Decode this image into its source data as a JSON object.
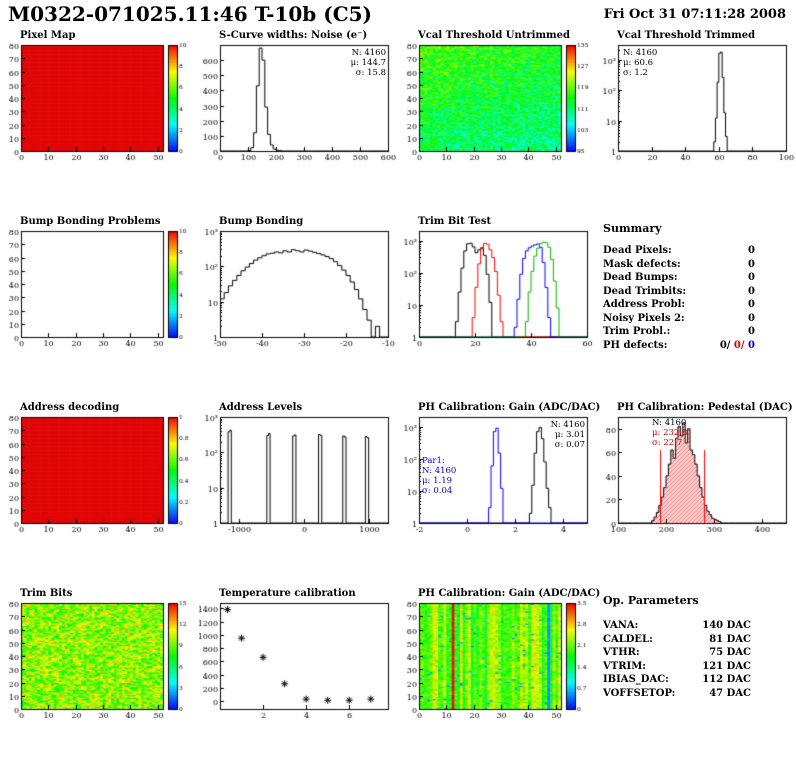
{
  "header": {
    "title": "M0322-071025.11:46 T-10b (C5)",
    "date": "Fri Oct 31 07:11:28 2008"
  },
  "summary": {
    "title": "Summary",
    "rows": [
      {
        "label": "Dead Pixels:",
        "value": "0"
      },
      {
        "label": "Mask defects:",
        "value": "0"
      },
      {
        "label": "Dead Bumps:",
        "value": "0"
      },
      {
        "label": "Dead Trimbits:",
        "value": "0"
      },
      {
        "label": "Address Probl:",
        "value": "0"
      },
      {
        "label": "Noisy Pixels 2:",
        "value": "0"
      },
      {
        "label": "Trim Probl.:",
        "value": "0"
      }
    ],
    "ph_defects": {
      "label": "PH defects:",
      "values": [
        {
          "text": "0/",
          "color": "#000000"
        },
        {
          "text": "0/",
          "color": "#cc0000"
        },
        {
          "text": "0",
          "color": "#0000cc"
        }
      ]
    }
  },
  "op_parameters": {
    "title": "Op. Parameters",
    "rows": [
      {
        "label": "VANA:",
        "value": "140 DAC"
      },
      {
        "label": "CALDEL:",
        "value": "81 DAC"
      },
      {
        "label": "VTHR:",
        "value": "75 DAC"
      },
      {
        "label": "VTRIM:",
        "value": "121 DAC"
      },
      {
        "label": "IBIAS_DAC:",
        "value": "112 DAC"
      },
      {
        "label": "VOFFSETOP:",
        "value": "47 DAC"
      }
    ]
  },
  "chart_data": [
    {
      "name": "pixel-map",
      "type": "heatmap",
      "title": "Pixel Map",
      "xrange": [
        0,
        52
      ],
      "yrange": [
        0,
        80
      ],
      "xticks": [
        0,
        10,
        20,
        30,
        40,
        50
      ],
      "yticks": [
        0,
        10,
        20,
        30,
        40,
        50,
        60,
        70,
        80
      ],
      "style": {
        "base": 1.0,
        "noise": 0
      },
      "colorbar": {
        "min": 0,
        "max": 10
      },
      "seed": 3
    },
    {
      "name": "scurve-widths-noise",
      "type": "hist",
      "title": "S-Curve widths: Noise (e⁻)",
      "xrange": [
        0,
        600
      ],
      "xticks": [
        0,
        100,
        200,
        300,
        400,
        500,
        600
      ],
      "yscale": "lin",
      "yrange": [
        0,
        700
      ],
      "yticks": [
        0,
        100,
        200,
        300,
        400,
        500,
        600
      ],
      "binw": 10,
      "color": "#000000",
      "bins": [
        [
          100,
          3
        ],
        [
          110,
          22
        ],
        [
          120,
          120
        ],
        [
          130,
          430
        ],
        [
          140,
          680
        ],
        [
          150,
          600
        ],
        [
          160,
          290
        ],
        [
          170,
          110
        ],
        [
          180,
          40
        ],
        [
          190,
          13
        ],
        [
          200,
          5
        ],
        [
          210,
          2
        ]
      ],
      "stats": [
        "N: 4160",
        "μ: 144.7",
        "σ: 15.8"
      ]
    },
    {
      "name": "vcal-threshold-untrimmed",
      "type": "heatmap",
      "title": "Vcal Threshold Untrimmed",
      "xrange": [
        0,
        52
      ],
      "yrange": [
        0,
        80
      ],
      "xticks": [
        0,
        10,
        20,
        30,
        40,
        50
      ],
      "yticks": [
        0,
        10,
        20,
        30,
        40,
        50,
        60,
        70,
        80
      ],
      "style": {
        "base": 0.42,
        "noise": 0.14,
        "grady": 0.14,
        "gradx": -0.06
      },
      "colorbar": {
        "min": 95,
        "max": 135
      },
      "seed": 7
    },
    {
      "name": "vcal-threshold-trimmed",
      "type": "hist",
      "title": "Vcal Threshold Trimmed",
      "xrange": [
        0,
        100
      ],
      "xticks": [
        0,
        20,
        40,
        60,
        80,
        100
      ],
      "yscale": "log",
      "yrange": [
        1,
        3000
      ],
      "binw": 1,
      "color": "#000000",
      "bins": [
        [
          57,
          2
        ],
        [
          58,
          12
        ],
        [
          59,
          180
        ],
        [
          60,
          1600
        ],
        [
          61,
          1750
        ],
        [
          62,
          260
        ],
        [
          63,
          18
        ],
        [
          64,
          3
        ]
      ],
      "stats": [
        "N: 4160",
        "μ: 60.6",
        "σ: 1.2"
      ]
    },
    {
      "name": "bump-bonding-problems",
      "type": "heatmap",
      "title": "Bump Bonding Problems",
      "xrange": [
        0,
        52
      ],
      "yrange": [
        0,
        80
      ],
      "xticks": [
        0,
        10,
        20,
        30,
        40,
        50
      ],
      "yticks": [
        0,
        10,
        20,
        30,
        40,
        50,
        60,
        70,
        80
      ],
      "style": {
        "empty": true
      },
      "colorbar": {
        "min": 0,
        "max": 10
      },
      "seed": 5
    },
    {
      "name": "bump-bonding",
      "type": "hist",
      "title": "Bump Bonding",
      "xrange": [
        -50,
        -10
      ],
      "xticks": [
        -50,
        -40,
        -30,
        -20,
        -10
      ],
      "yscale": "log",
      "yrange": [
        1,
        1000
      ],
      "binw": 1,
      "color": "#000000",
      "bins": [
        [
          -50,
          12
        ],
        [
          -49,
          18
        ],
        [
          -48,
          28
        ],
        [
          -47,
          40
        ],
        [
          -46,
          55
        ],
        [
          -45,
          75
        ],
        [
          -44,
          95
        ],
        [
          -43,
          120
        ],
        [
          -42,
          150
        ],
        [
          -41,
          175
        ],
        [
          -40,
          200
        ],
        [
          -39,
          225
        ],
        [
          -38,
          235
        ],
        [
          -37,
          255
        ],
        [
          -36,
          240
        ],
        [
          -35,
          275
        ],
        [
          -34,
          255
        ],
        [
          -33,
          295
        ],
        [
          -32,
          275
        ],
        [
          -31,
          255
        ],
        [
          -30,
          290
        ],
        [
          -29,
          270
        ],
        [
          -28,
          250
        ],
        [
          -27,
          230
        ],
        [
          -26,
          210
        ],
        [
          -25,
          190
        ],
        [
          -24,
          165
        ],
        [
          -23,
          135
        ],
        [
          -22,
          105
        ],
        [
          -21,
          78
        ],
        [
          -20,
          55
        ],
        [
          -19,
          36
        ],
        [
          -18,
          22
        ],
        [
          -17,
          12
        ],
        [
          -16,
          6
        ],
        [
          -15,
          3
        ],
        [
          -13,
          2
        ]
      ]
    },
    {
      "name": "trim-bit-test",
      "type": "multihist",
      "title": "Trim Bit Test",
      "xrange": [
        0,
        60
      ],
      "xticks": [
        0,
        20,
        40,
        60
      ],
      "yscale": "log",
      "yrange": [
        1,
        2000
      ],
      "binw": 1,
      "series": [
        {
          "color": "#000000",
          "bins": [
            [
              13,
              3
            ],
            [
              14,
              25
            ],
            [
              15,
              140
            ],
            [
              16,
              480
            ],
            [
              17,
              800
            ],
            [
              18,
              830
            ],
            [
              19,
              640
            ],
            [
              20,
              420
            ],
            [
              21,
              520
            ],
            [
              22,
              600
            ],
            [
              23,
              350
            ],
            [
              24,
              90
            ],
            [
              25,
              12
            ]
          ]
        },
        {
          "color": "#ff0000",
          "bins": [
            [
              19,
              4
            ],
            [
              20,
              35
            ],
            [
              21,
              190
            ],
            [
              22,
              560
            ],
            [
              23,
              830
            ],
            [
              24,
              780
            ],
            [
              25,
              520
            ],
            [
              26,
              300
            ],
            [
              27,
              110
            ],
            [
              28,
              20
            ],
            [
              29,
              3
            ]
          ]
        },
        {
          "color": "#0000ff",
          "bins": [
            [
              34,
              2
            ],
            [
              35,
              15
            ],
            [
              36,
              90
            ],
            [
              37,
              280
            ],
            [
              38,
              480
            ],
            [
              39,
              600
            ],
            [
              40,
              680
            ],
            [
              41,
              740
            ],
            [
              42,
              790
            ],
            [
              43,
              620
            ],
            [
              44,
              210
            ],
            [
              45,
              35
            ],
            [
              46,
              4
            ]
          ]
        },
        {
          "color": "#00bb00",
          "bins": [
            [
              38,
              3
            ],
            [
              39,
              25
            ],
            [
              40,
              110
            ],
            [
              41,
              330
            ],
            [
              42,
              580
            ],
            [
              43,
              800
            ],
            [
              44,
              900
            ],
            [
              45,
              860
            ],
            [
              46,
              620
            ],
            [
              47,
              260
            ],
            [
              48,
              55
            ],
            [
              49,
              8
            ]
          ]
        }
      ]
    },
    {
      "name": "address-decoding",
      "type": "heatmap",
      "title": "Address decoding",
      "xrange": [
        0,
        52
      ],
      "yrange": [
        0,
        80
      ],
      "xticks": [
        0,
        10,
        20,
        30,
        40,
        50
      ],
      "yticks": [
        0,
        10,
        20,
        30,
        40,
        50,
        60,
        70,
        80
      ],
      "style": {
        "base": 1.0,
        "noise": 0
      },
      "colorbar": {
        "min": 0,
        "max": 1
      },
      "seed": 9
    },
    {
      "name": "address-levels",
      "type": "hist",
      "title": "Address Levels",
      "xrange": [
        -1300,
        1300
      ],
      "xticks": [
        -1000,
        0,
        1000
      ],
      "yscale": "log",
      "yrange": [
        1,
        1000
      ],
      "binw": 25,
      "color": "#000000",
      "bins": [
        [
          -1175,
          380
        ],
        [
          -1150,
          420
        ],
        [
          -570,
          300
        ],
        [
          -545,
          340
        ],
        [
          -175,
          290
        ],
        [
          -150,
          310
        ],
        [
          215,
          320
        ],
        [
          240,
          300
        ],
        [
          590,
          290
        ],
        [
          615,
          270
        ],
        [
          950,
          280
        ],
        [
          975,
          260
        ]
      ]
    },
    {
      "name": "ph-calibration-gain-hist",
      "type": "multihist",
      "title": "PH Calibration: Gain (ADC/DAC)",
      "xrange": [
        -2,
        5
      ],
      "xticks": [
        -2,
        0,
        2,
        4
      ],
      "yscale": "log",
      "yrange": [
        1,
        2000
      ],
      "binw": 0.1,
      "series": [
        {
          "color": "#000000",
          "bins": [
            [
              2.6,
              2
            ],
            [
              2.7,
              15
            ],
            [
              2.8,
              150
            ],
            [
              2.9,
              700
            ],
            [
              3.0,
              950
            ],
            [
              3.1,
              420
            ],
            [
              3.2,
              80
            ],
            [
              3.3,
              12
            ],
            [
              3.4,
              3
            ]
          ]
        },
        {
          "color": "#0000ff",
          "bins": [
            [
              0.9,
              3
            ],
            [
              1.0,
              60
            ],
            [
              1.1,
              700
            ],
            [
              1.2,
              900
            ],
            [
              1.3,
              150
            ],
            [
              1.4,
              12
            ]
          ]
        }
      ],
      "stats": [
        "N: 4160",
        "μ: 3.01",
        "σ: 0.07"
      ],
      "stats2": [
        "Par1:",
        "N: 4160",
        "μ: 1.19",
        "σ: 0.04"
      ]
    },
    {
      "name": "ph-calibration-pedestal",
      "type": "hist",
      "title": "PH Calibration: Pedestal (DAC)",
      "xrange": [
        100,
        450
      ],
      "xticks": [
        100,
        200,
        300,
        400
      ],
      "yscale": "lin",
      "yrange": [
        0,
        90
      ],
      "yticks": [
        0,
        20,
        40,
        60,
        80
      ],
      "binw": 5,
      "color": "#000000",
      "fill": true,
      "bins": [
        [
          170,
          2
        ],
        [
          175,
          5
        ],
        [
          180,
          9
        ],
        [
          185,
          15
        ],
        [
          190,
          22
        ],
        [
          195,
          30
        ],
        [
          200,
          40
        ],
        [
          205,
          50
        ],
        [
          210,
          62
        ],
        [
          215,
          55
        ],
        [
          220,
          72
        ],
        [
          225,
          82
        ],
        [
          230,
          74
        ],
        [
          235,
          85
        ],
        [
          240,
          68
        ],
        [
          245,
          80
        ],
        [
          250,
          62
        ],
        [
          255,
          58
        ],
        [
          260,
          50
        ],
        [
          265,
          40
        ],
        [
          270,
          30
        ],
        [
          275,
          22
        ],
        [
          280,
          15
        ],
        [
          285,
          10
        ],
        [
          290,
          7
        ],
        [
          295,
          4
        ],
        [
          300,
          3
        ],
        [
          305,
          2
        ],
        [
          310,
          1
        ]
      ],
      "vlines": [
        {
          "x": 187.4,
          "top": 62,
          "color": "#ff0000"
        },
        {
          "x": 278.2,
          "top": 62,
          "color": "#ff0000"
        }
      ],
      "stats": [
        "N: 4160",
        "μ: 232.8",
        "σ: 22.7"
      ]
    },
    {
      "name": "trim-bits",
      "type": "heatmap",
      "title": "Trim Bits",
      "xrange": [
        0,
        52
      ],
      "yrange": [
        0,
        80
      ],
      "xticks": [
        0,
        10,
        20,
        30,
        40,
        50
      ],
      "yticks": [
        0,
        10,
        20,
        30,
        40,
        50,
        60,
        70,
        80
      ],
      "style": {
        "base": 0.64,
        "noise": 0.18
      },
      "colorbar": {
        "min": 0,
        "max": 15
      },
      "seed": 13
    },
    {
      "name": "temperature-calibration",
      "type": "scatter",
      "title": "Temperature calibration",
      "xrange": [
        0,
        7.8
      ],
      "xticks": [
        2,
        4,
        6
      ],
      "yrange": [
        -120,
        1480
      ],
      "yticks": [
        0,
        200,
        400,
        600,
        800,
        1000,
        1200,
        1400
      ],
      "marker": "asterisk",
      "points": [
        [
          0.35,
          1380
        ],
        [
          1,
          950
        ],
        [
          2,
          660
        ],
        [
          3,
          260
        ],
        [
          4,
          30
        ],
        [
          5,
          12
        ],
        [
          6,
          12
        ],
        [
          7,
          30
        ]
      ]
    },
    {
      "name": "ph-calibration-gain-map",
      "type": "heatmap",
      "title": "PH Calibration: Gain (ADC/DAC)",
      "xrange": [
        0,
        52
      ],
      "yrange": [
        0,
        80
      ],
      "xticks": [
        0,
        10,
        20,
        30,
        40,
        50
      ],
      "yticks": [
        0,
        10,
        20,
        30,
        40,
        50,
        60,
        70,
        80
      ],
      "style": {
        "base": 0.6,
        "noise": 0.2,
        "columns": true,
        "colnoise": 0.15,
        "special": [
          {
            "x": 12,
            "v": 0.99
          },
          {
            "x": 47,
            "v": 0.15
          }
        ]
      },
      "colorbar": {
        "min": 0,
        "max": 3.5
      },
      "seed": 21
    }
  ]
}
